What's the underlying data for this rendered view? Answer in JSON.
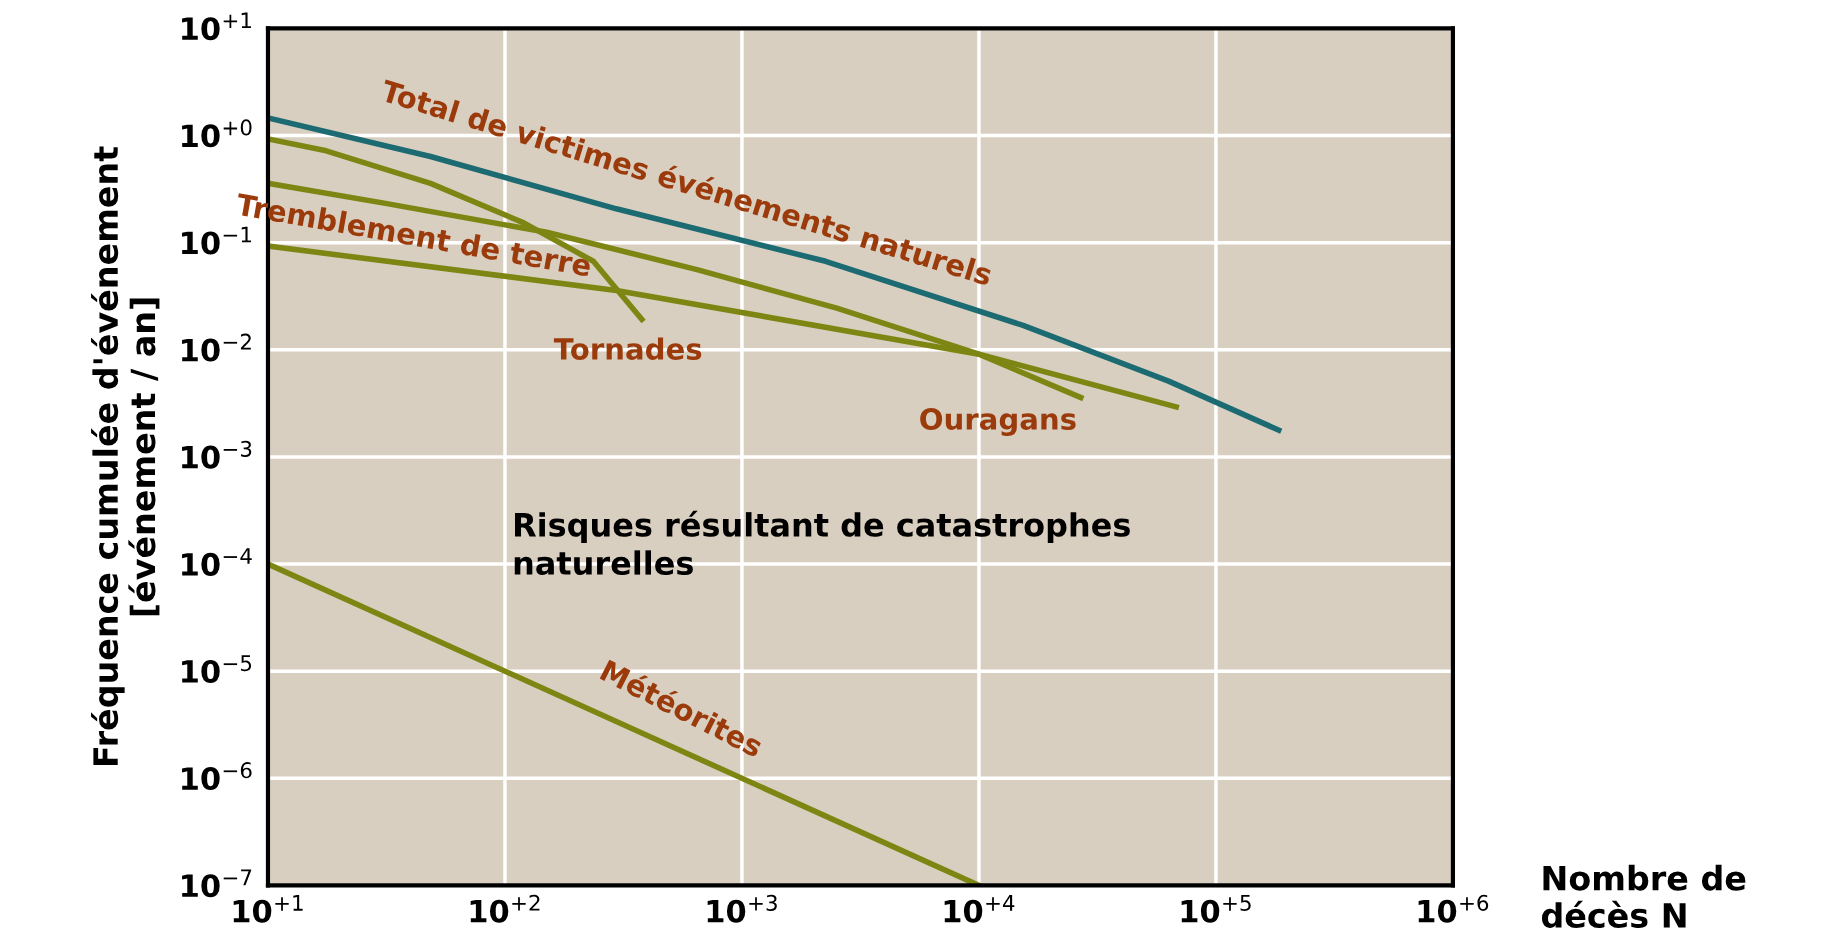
{
  "chart_data": {
    "type": "line",
    "xlabel": "Nombre de\ndécès N",
    "ylabel": "Fréquence cumulée d'événement\n[événement / an]",
    "log": "xy",
    "grid": true,
    "legend": false,
    "marker": "none",
    "line_style": "solid",
    "xlim": [
      10,
      1000000
    ],
    "ylim": [
      1e-07,
      10
    ],
    "xticks": [
      {
        "value": 10,
        "label": "10$^{+1}$"
      },
      {
        "value": 100,
        "label": "10$^{+2}$"
      },
      {
        "value": 1000,
        "label": "10$^{+3}$"
      },
      {
        "value": 10000,
        "label": "10$^{+4}$"
      },
      {
        "value": 100000,
        "label": "10$^{+5}$"
      },
      {
        "value": 1000000,
        "label": "10$^{+6}$"
      }
    ],
    "yticks": [
      {
        "value": 1e-07,
        "label": "10$^{−7}$"
      },
      {
        "value": 1e-06,
        "label": "10$^{−6}$"
      },
      {
        "value": 1e-05,
        "label": "10$^{−5}$"
      },
      {
        "value": 0.0001,
        "label": "10$^{−4}$"
      },
      {
        "value": 0.001,
        "label": "10$^{−3}$"
      },
      {
        "value": 0.01,
        "label": "10$^{−2}$"
      },
      {
        "value": 0.1,
        "label": "10$^{−1}$"
      },
      {
        "value": 1,
        "label": "10$^{+0}$"
      },
      {
        "value": 10,
        "label": "10$^{+1}$"
      }
    ],
    "series": [
      {
        "color": "#1d6b72",
        "x": [
          10,
          48.5,
          295,
          2254,
          15350,
          63100,
          184000
        ],
        "values": [
          1.46,
          0.637,
          0.207,
          0.067,
          0.0169,
          0.0051,
          0.00178
        ]
      },
      {
        "color": "#7d8612",
        "x": [
          10,
          17.6,
          48.5,
          120,
          236,
          378
        ],
        "values": [
          0.93,
          0.72,
          0.358,
          0.153,
          0.067,
          0.0192
        ]
      },
      {
        "color": "#7d8612",
        "x": [
          10,
          30.9,
          150,
          646,
          2512,
          10000,
          26900
        ],
        "values": [
          0.358,
          0.234,
          0.125,
          0.056,
          0.0245,
          0.0091,
          0.00358
        ]
      },
      {
        "color": "#7d8612",
        "x": [
          10,
          295,
          10000,
          68000
        ],
        "values": [
          0.093,
          0.0358,
          0.0091,
          0.00293
        ]
      },
      {
        "color": "#7d8612",
        "x": [
          10,
          10000
        ],
        "values": [
          0.0001,
          1e-07
        ]
      }
    ],
    "annotations": [
      "Total de victimes événements naturels",
      "Tremblement de terre",
      "Tornades",
      "Ouragans",
      "Météorites",
      "Risques résultant de catastrophes\nnaturelles"
    ]
  }
}
